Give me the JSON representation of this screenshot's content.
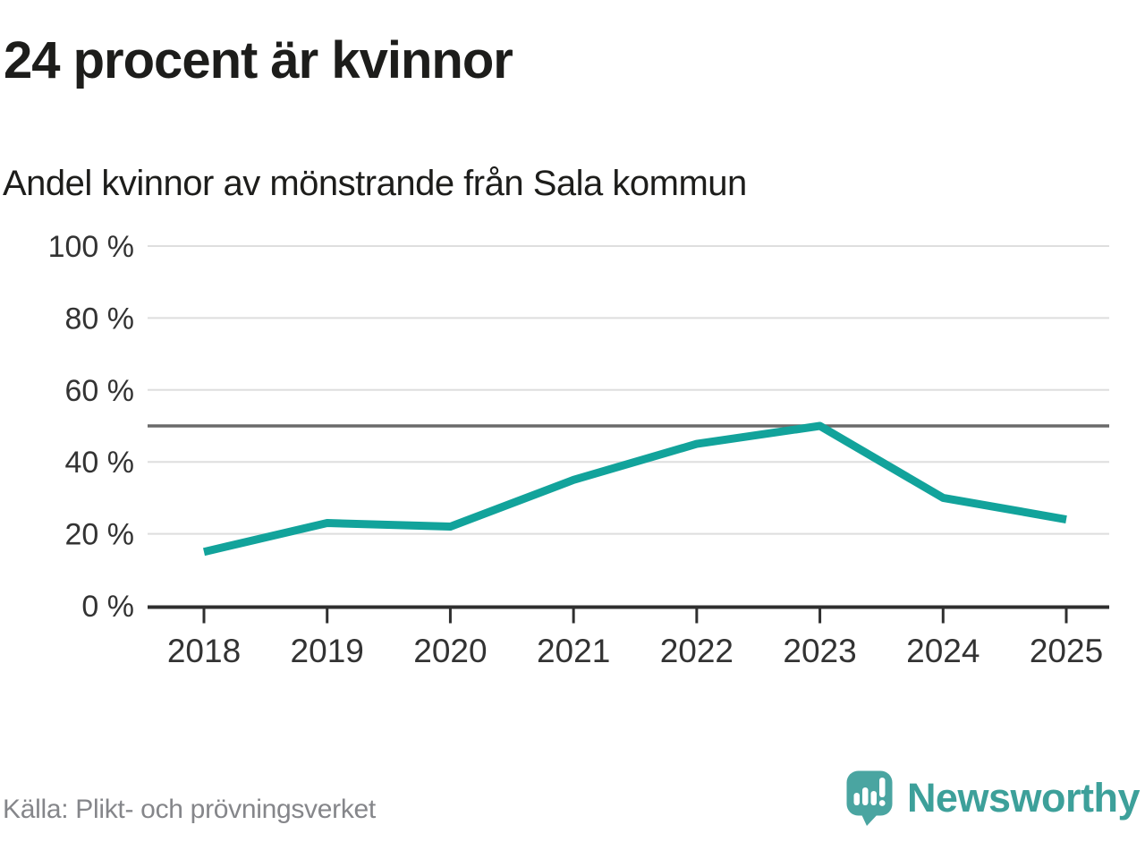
{
  "header": {
    "title": "24 procent är kvinnor",
    "subtitle": "Andel kvinnor av mönstrande från Sala kommun"
  },
  "footer": {
    "source": "Källa: Plikt- och prövningsverket",
    "brand": "Newsworthy",
    "brand_icon": "newsworthy-speech-bubble-bar-chart-icon"
  },
  "colors": {
    "line": "#12a39b",
    "grid": "#dedede",
    "reference_line": "#6a6a6a",
    "axis": "#2f2f2f",
    "tick_label": "#333333",
    "title_text": "#1d1d1b",
    "muted_text": "#85868a",
    "logo_bubble": "#4aa5a1",
    "logo_word": "#3da09a"
  },
  "chart_data": {
    "type": "line",
    "title": "24 procent är kvinnor",
    "subtitle": "Andel kvinnor av mönstrande från Sala kommun",
    "x": [
      2018,
      2019,
      2020,
      2021,
      2022,
      2023,
      2024,
      2025
    ],
    "series": [
      {
        "name": "Andel kvinnor av mönstrande",
        "values": [
          15,
          23,
          22,
          35,
          45,
          50,
          30,
          24
        ]
      }
    ],
    "unit": "%",
    "ylim": [
      0,
      100
    ],
    "yticks": [
      0,
      20,
      40,
      60,
      80,
      100
    ],
    "ytick_suffix": " %",
    "reference_line": 50,
    "grid": true,
    "legend": false,
    "xlabel": "",
    "ylabel": ""
  }
}
